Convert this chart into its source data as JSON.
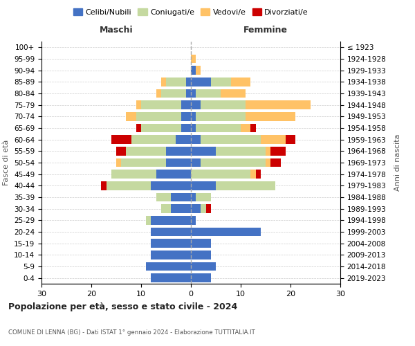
{
  "age_groups": [
    "0-4",
    "5-9",
    "10-14",
    "15-19",
    "20-24",
    "25-29",
    "30-34",
    "35-39",
    "40-44",
    "45-49",
    "50-54",
    "55-59",
    "60-64",
    "65-69",
    "70-74",
    "75-79",
    "80-84",
    "85-89",
    "90-94",
    "95-99",
    "100+"
  ],
  "birth_years": [
    "2019-2023",
    "2014-2018",
    "2009-2013",
    "2004-2008",
    "1999-2003",
    "1994-1998",
    "1989-1993",
    "1984-1988",
    "1979-1983",
    "1974-1978",
    "1969-1973",
    "1964-1968",
    "1959-1963",
    "1954-1958",
    "1949-1953",
    "1944-1948",
    "1939-1943",
    "1934-1938",
    "1929-1933",
    "1924-1928",
    "≤ 1923"
  ],
  "colors": {
    "celibi": "#4472c4",
    "coniugati": "#c5d9a0",
    "vedovi": "#ffc266",
    "divorziati": "#cc0000"
  },
  "maschi": {
    "celibi": [
      8,
      9,
      8,
      8,
      8,
      8,
      4,
      4,
      8,
      7,
      5,
      5,
      3,
      2,
      2,
      2,
      1,
      1,
      0,
      0,
      0
    ],
    "coniugati": [
      0,
      0,
      0,
      0,
      0,
      1,
      2,
      3,
      9,
      9,
      9,
      8,
      9,
      8,
      9,
      8,
      5,
      4,
      0,
      0,
      0
    ],
    "vedovi": [
      0,
      0,
      0,
      0,
      0,
      0,
      0,
      0,
      0,
      0,
      1,
      0,
      0,
      0,
      2,
      1,
      1,
      1,
      0,
      0,
      0
    ],
    "divorziati": [
      0,
      0,
      0,
      0,
      0,
      0,
      0,
      0,
      1,
      0,
      0,
      2,
      4,
      1,
      0,
      0,
      0,
      0,
      0,
      0,
      0
    ]
  },
  "femmine": {
    "celibi": [
      4,
      5,
      4,
      4,
      14,
      1,
      2,
      1,
      5,
      0,
      2,
      5,
      2,
      1,
      1,
      2,
      1,
      4,
      1,
      0,
      0
    ],
    "coniugati": [
      0,
      0,
      0,
      0,
      0,
      0,
      1,
      3,
      12,
      12,
      13,
      10,
      12,
      9,
      10,
      9,
      5,
      4,
      0,
      0,
      0
    ],
    "vedovi": [
      0,
      0,
      0,
      0,
      0,
      0,
      0,
      0,
      0,
      1,
      1,
      1,
      5,
      2,
      10,
      13,
      5,
      4,
      1,
      1,
      0
    ],
    "divorziati": [
      0,
      0,
      0,
      0,
      0,
      0,
      1,
      0,
      0,
      1,
      2,
      3,
      2,
      1,
      0,
      0,
      0,
      0,
      0,
      0,
      0
    ]
  },
  "xlim": 30,
  "title_main": "Popolazione per età, sesso e stato civile - 2024",
  "title_sub": "COMUNE DI LENNA (BG) - Dati ISTAT 1° gennaio 2024 - Elaborazione TUTTITALIA.IT",
  "ylabel_left": "Fasce di età",
  "ylabel_right": "Anni di nascita",
  "label_maschi": "Maschi",
  "label_femmine": "Femmine",
  "legend_labels": [
    "Celibi/Nubili",
    "Coniugati/e",
    "Vedovi/e",
    "Divorziati/e"
  ],
  "background_color": "#ffffff",
  "grid_color": "#cccccc"
}
